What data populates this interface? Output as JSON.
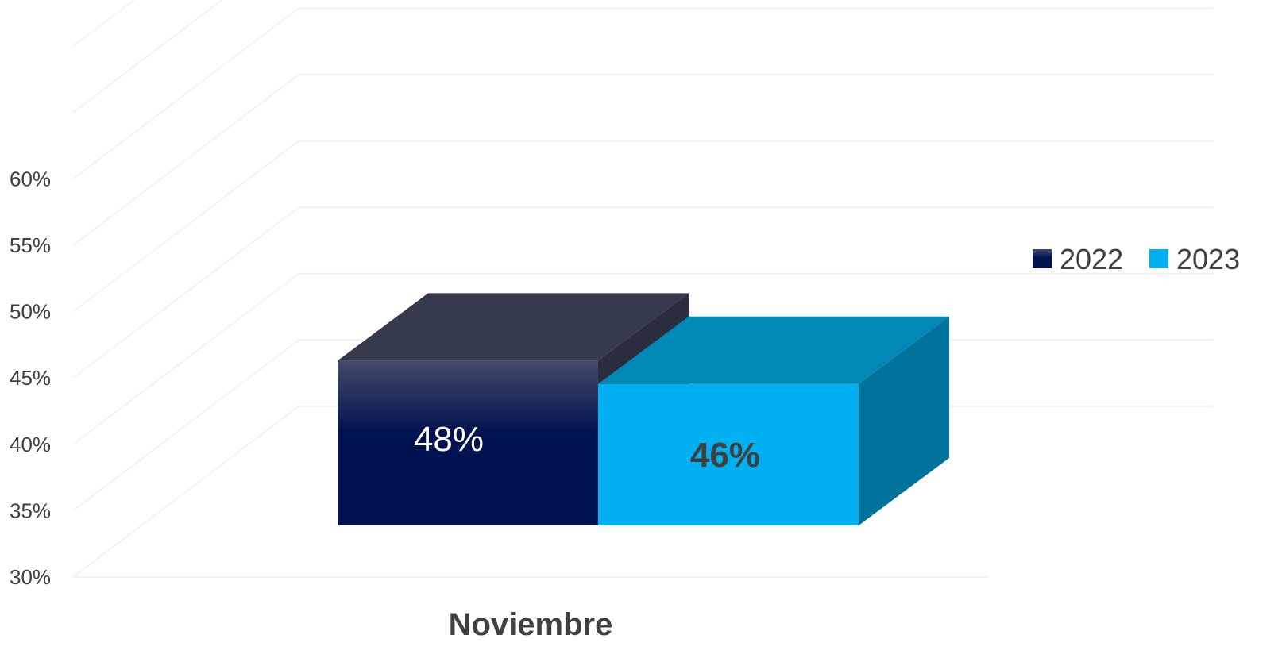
{
  "chart_data": {
    "type": "bar",
    "title": "",
    "xlabel": "",
    "ylabel": "",
    "categories": [
      "Noviembre"
    ],
    "series": [
      {
        "name": "2022",
        "values": [
          48
        ],
        "label": "48%",
        "color": "#00124f",
        "top_color": "#353a4e",
        "side_color": "#2a2d3e"
      },
      {
        "name": "2023",
        "values": [
          46
        ],
        "label": "46%",
        "color": "#00b0f0",
        "top_color": "#0088b6",
        "side_color": "#00739c"
      }
    ],
    "ylim": [
      30,
      60
    ],
    "yticks": [
      30,
      35,
      40,
      45,
      50,
      55,
      60
    ],
    "ytick_labels": [
      "30%",
      "35%",
      "40%",
      "45%",
      "50%",
      "55%",
      "60%"
    ],
    "grid": true,
    "legend_position": "right",
    "style": "3d-column"
  }
}
